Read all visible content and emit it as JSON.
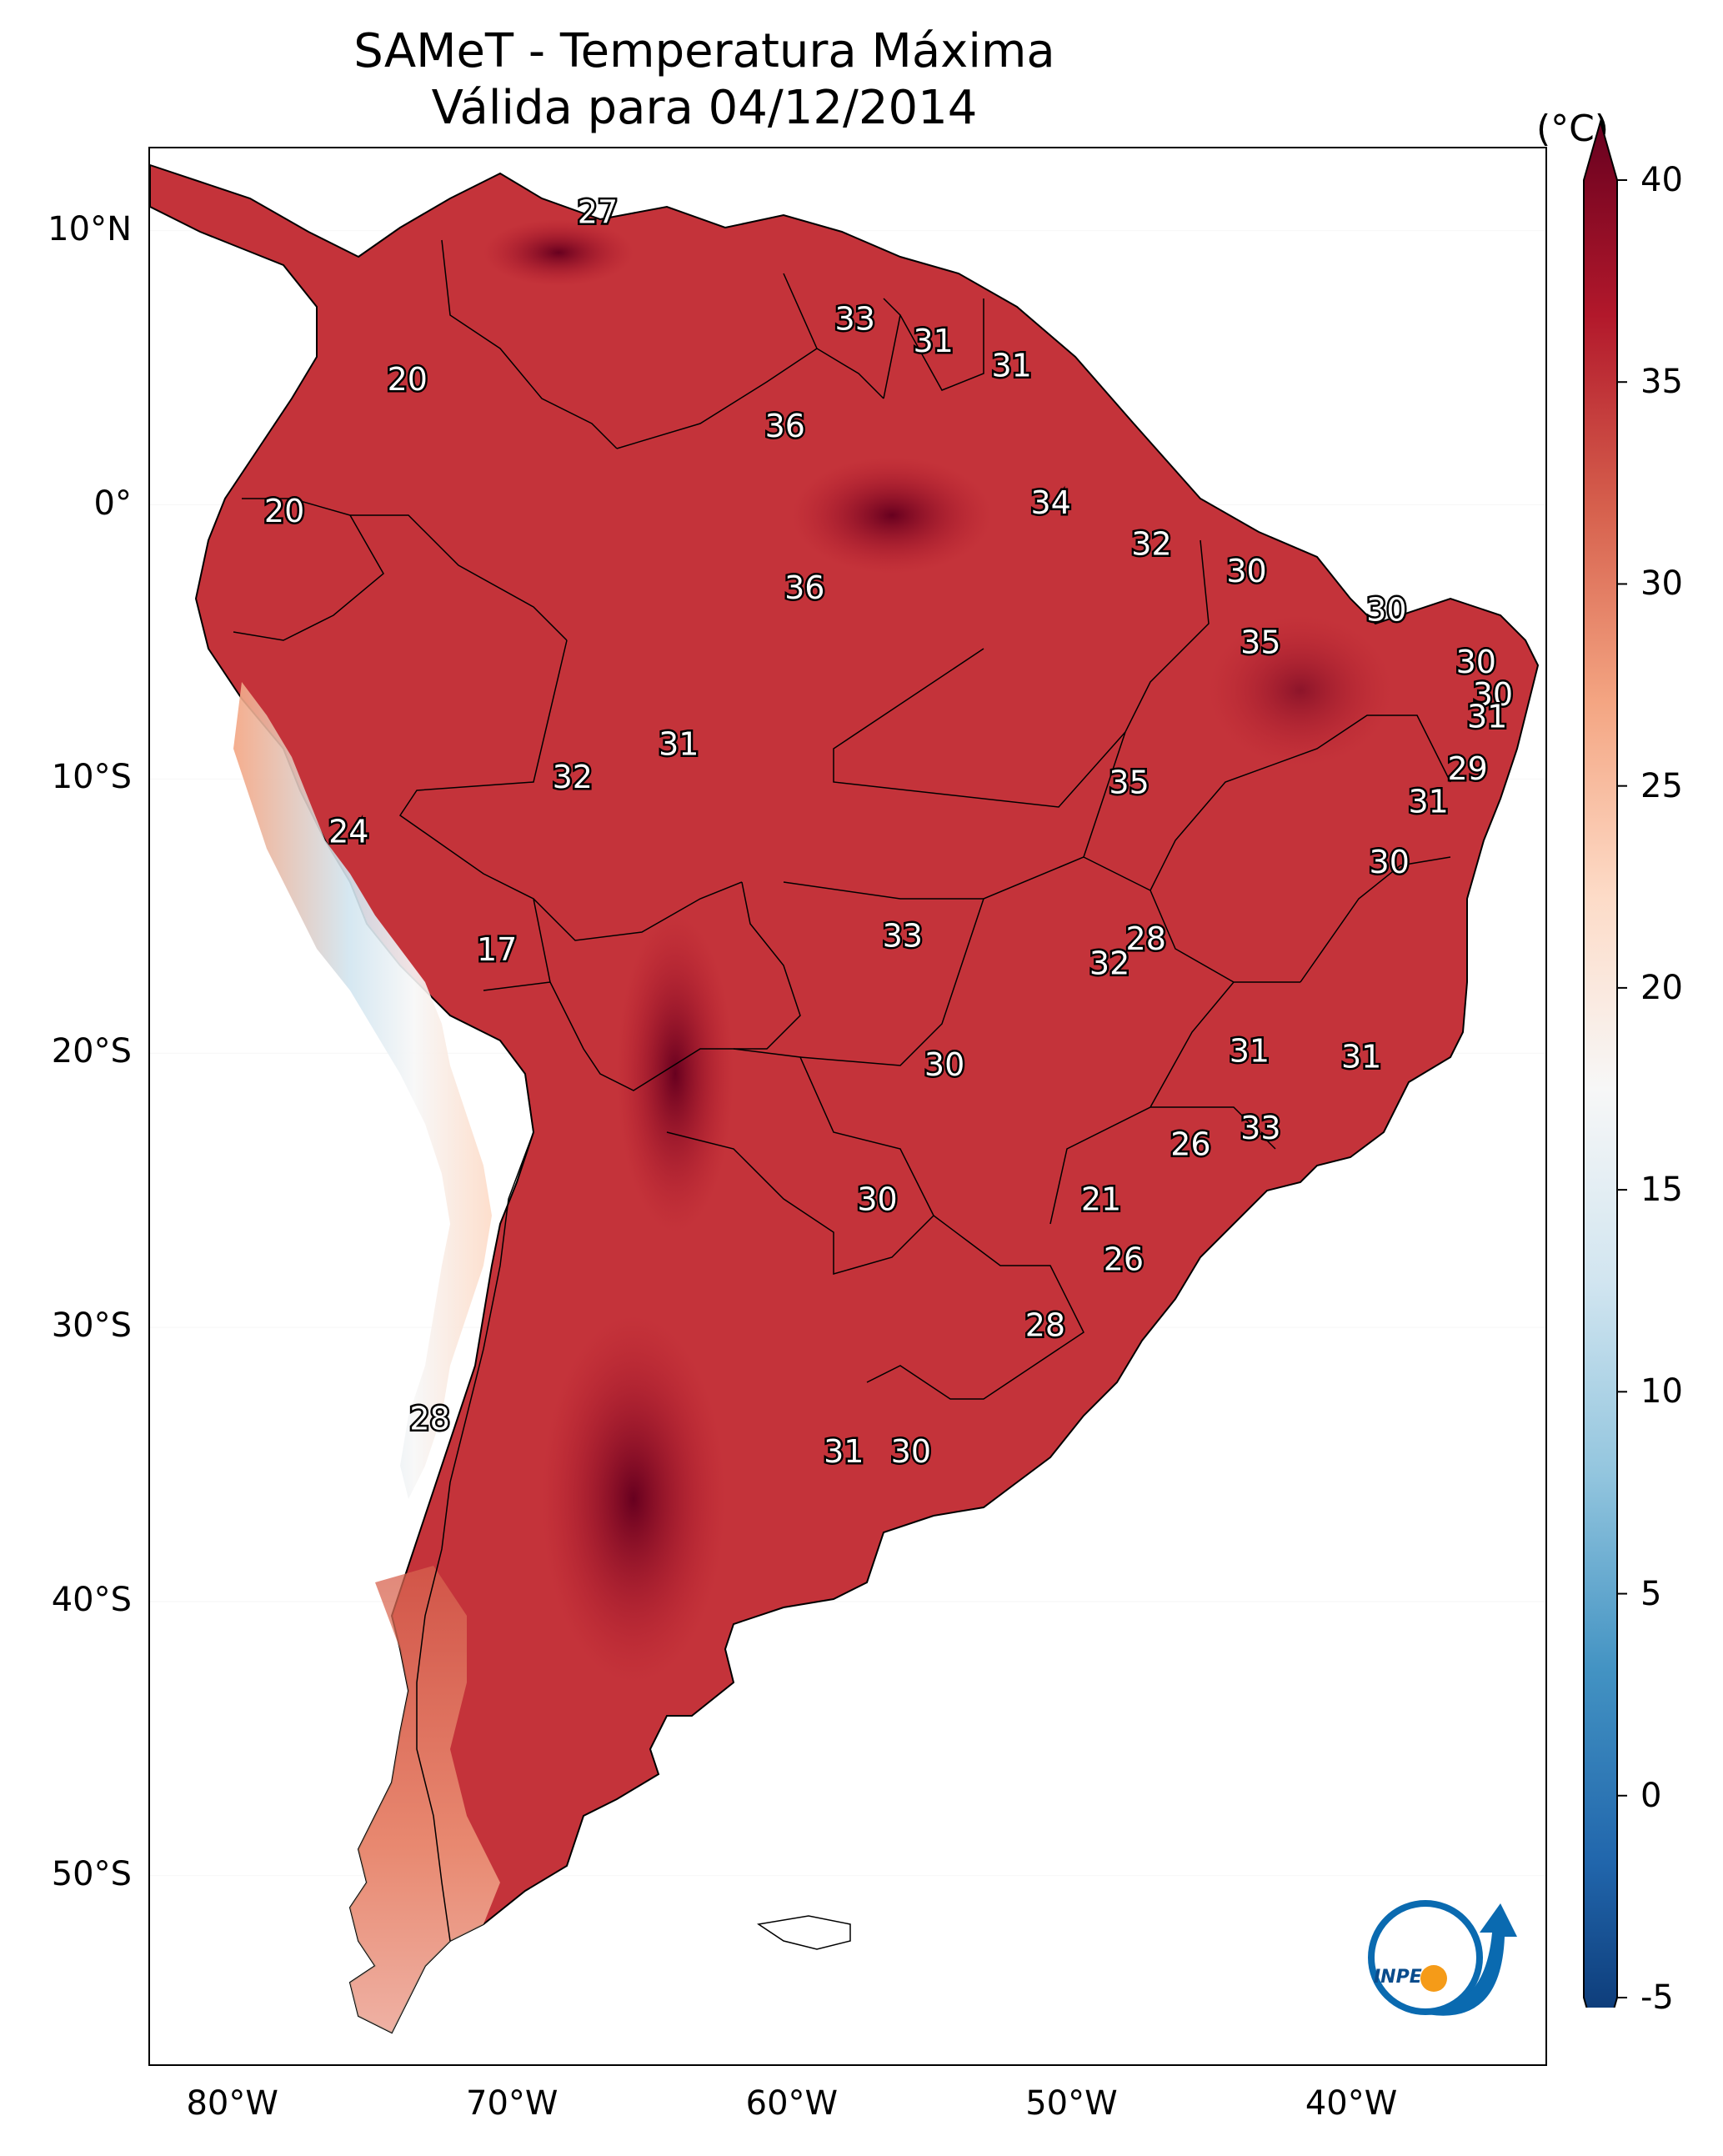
{
  "title": {
    "line1": "SAMeT - Temperatura Máxima",
    "line2": "Válida para 04/12/2014"
  },
  "axes": {
    "lat_ticks": [
      {
        "value": 10,
        "label": "10°N"
      },
      {
        "value": 0,
        "label": "0°"
      },
      {
        "value": -10,
        "label": "10°S"
      },
      {
        "value": -20,
        "label": "20°S"
      },
      {
        "value": -30,
        "label": "30°S"
      },
      {
        "value": -40,
        "label": "40°S"
      },
      {
        "value": -50,
        "label": "50°S"
      }
    ],
    "lon_ticks": [
      {
        "value": -80,
        "label": "80°W"
      },
      {
        "value": -70,
        "label": "70°W"
      },
      {
        "value": -60,
        "label": "60°W"
      },
      {
        "value": -50,
        "label": "50°W"
      },
      {
        "value": -40,
        "label": "40°W"
      }
    ],
    "lon_range": [
      -83,
      -33
    ],
    "lat_range": [
      -57,
      13
    ]
  },
  "colorbar": {
    "units": "(°C)",
    "min": -5,
    "max": 40,
    "ticks": [
      {
        "value": 40,
        "label": "40"
      },
      {
        "value": 35,
        "label": "35"
      },
      {
        "value": 30,
        "label": "30"
      },
      {
        "value": 25,
        "label": "25"
      },
      {
        "value": 20,
        "label": "20"
      },
      {
        "value": 15,
        "label": "15"
      },
      {
        "value": 10,
        "label": "10"
      },
      {
        "value": 5,
        "label": "5"
      },
      {
        "value": 0,
        "label": "0"
      },
      {
        "value": -5,
        "label": "-5"
      }
    ],
    "colors": [
      "#08306b",
      "#2166ac",
      "#4393c3",
      "#92c5de",
      "#d1e5f0",
      "#f7f7f7",
      "#fddbc7",
      "#f4a582",
      "#d6604d",
      "#b2182b",
      "#67001f"
    ]
  },
  "chart_data": {
    "type": "map",
    "variable": "Temperatura Máxima",
    "units": "°C",
    "date": "04/12/2014",
    "labels": [
      {
        "lon": -67.0,
        "lat": 10.6,
        "value": "27"
      },
      {
        "lon": -57.8,
        "lat": 6.7,
        "value": "33"
      },
      {
        "lon": -55.0,
        "lat": 5.9,
        "value": "31"
      },
      {
        "lon": -52.2,
        "lat": 5.0,
        "value": "31"
      },
      {
        "lon": -73.8,
        "lat": 4.5,
        "value": "20"
      },
      {
        "lon": -60.3,
        "lat": 2.8,
        "value": "36"
      },
      {
        "lon": -50.8,
        "lat": 0.0,
        "value": "34"
      },
      {
        "lon": -78.2,
        "lat": -0.3,
        "value": "20"
      },
      {
        "lon": -47.2,
        "lat": -1.5,
        "value": "32"
      },
      {
        "lon": -43.8,
        "lat": -2.5,
        "value": "30"
      },
      {
        "lon": -59.6,
        "lat": -3.1,
        "value": "36"
      },
      {
        "lon": -38.8,
        "lat": -3.9,
        "value": "30"
      },
      {
        "lon": -43.3,
        "lat": -5.1,
        "value": "35"
      },
      {
        "lon": -35.6,
        "lat": -5.8,
        "value": "30"
      },
      {
        "lon": -35.0,
        "lat": -7.0,
        "value": "30"
      },
      {
        "lon": -35.2,
        "lat": -7.8,
        "value": "31"
      },
      {
        "lon": -64.1,
        "lat": -8.8,
        "value": "31"
      },
      {
        "lon": -35.9,
        "lat": -9.7,
        "value": "29"
      },
      {
        "lon": -67.9,
        "lat": -10.0,
        "value": "32"
      },
      {
        "lon": -48.0,
        "lat": -10.2,
        "value": "35"
      },
      {
        "lon": -37.3,
        "lat": -10.9,
        "value": "31"
      },
      {
        "lon": -75.9,
        "lat": -12.0,
        "value": "24"
      },
      {
        "lon": -38.7,
        "lat": -13.1,
        "value": "30"
      },
      {
        "lon": -47.4,
        "lat": -15.9,
        "value": "28"
      },
      {
        "lon": -56.1,
        "lat": -15.8,
        "value": "33"
      },
      {
        "lon": -48.7,
        "lat": -16.8,
        "value": "32"
      },
      {
        "lon": -70.6,
        "lat": -16.3,
        "value": "17"
      },
      {
        "lon": -43.7,
        "lat": -20.0,
        "value": "31"
      },
      {
        "lon": -39.7,
        "lat": -20.2,
        "value": "31"
      },
      {
        "lon": -54.6,
        "lat": -20.5,
        "value": "30"
      },
      {
        "lon": -43.3,
        "lat": -22.8,
        "value": "33"
      },
      {
        "lon": -45.8,
        "lat": -23.4,
        "value": "26"
      },
      {
        "lon": -57.0,
        "lat": -25.4,
        "value": "30"
      },
      {
        "lon": -49.0,
        "lat": -25.4,
        "value": "21"
      },
      {
        "lon": -48.2,
        "lat": -27.6,
        "value": "26"
      },
      {
        "lon": -51.0,
        "lat": -30.0,
        "value": "28"
      },
      {
        "lon": -73.0,
        "lat": -33.4,
        "value": "28"
      },
      {
        "lon": -58.2,
        "lat": -34.6,
        "value": "31"
      },
      {
        "lon": -55.8,
        "lat": -34.6,
        "value": "30"
      }
    ]
  },
  "logo": {
    "name": "inpe-logo",
    "text": "INPE"
  }
}
